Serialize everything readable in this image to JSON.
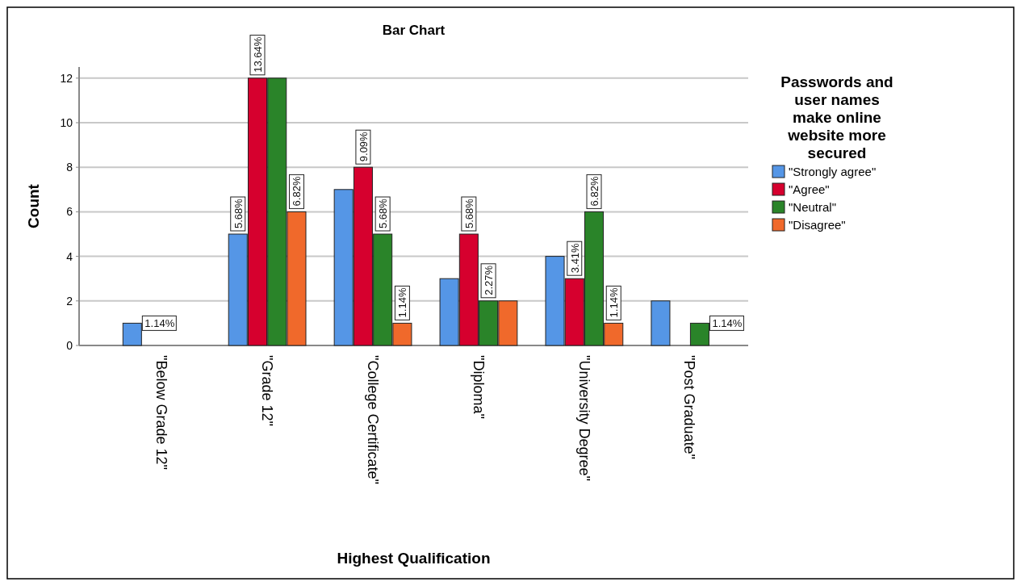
{
  "chart_data": {
    "type": "bar",
    "title": "Bar Chart",
    "xlabel": "Highest Qualification",
    "ylabel": "Count",
    "legend_title": "Passwords and user names make online website more secured",
    "categories": [
      "\"Below Grade 12\"",
      "\"Grade 12\"",
      "\"College Certificate\"",
      "\"Diploma\"",
      "\"University Degree\"",
      "\"Post Graduate\""
    ],
    "series": [
      {
        "name": "\"Strongly agree\"",
        "color": "#5596e6",
        "values": [
          1,
          5,
          7,
          3,
          4,
          2
        ]
      },
      {
        "name": "\"Agree\"",
        "color": "#d6002e",
        "values": [
          0,
          12,
          8,
          5,
          3,
          0
        ]
      },
      {
        "name": "\"Neutral\"",
        "color": "#2a8429",
        "values": [
          0,
          12,
          5,
          2,
          6,
          1
        ]
      },
      {
        "name": "\"Disagree\"",
        "color": "#f0692b",
        "values": [
          0,
          6,
          1,
          2,
          1,
          0
        ]
      }
    ],
    "annotations": [
      "1.14%",
      {
        "text": "5.68%",
        "x": "\"Grade 12\"",
        "y": 5
      },
      {
        "text": "13.64%",
        "x": "\"Grade 12\"",
        "y": 12
      },
      {
        "text": "6.82%",
        "x": "\"Grade 12\"",
        "y": 6
      },
      {
        "text": "9.09%",
        "x": "\"College Certificate\"",
        "y": 8
      },
      {
        "text": "5.68%",
        "x": "\"College Certificate\"",
        "y": 5
      },
      {
        "text": "1.14%",
        "x": "\"College Certificate\"",
        "y": 1
      },
      {
        "text": "5.68%",
        "x": "\"Diploma\"",
        "y": 5
      },
      {
        "text": "2.27%",
        "x": "\"Diploma\"",
        "y": 2
      },
      {
        "text": "3.41%",
        "x": "\"University Degree\"",
        "y": 3
      },
      {
        "text": "6.82%",
        "x": "\"University Degree\"",
        "y": 6
      },
      {
        "text": "1.14%",
        "x": "\"University Degree\"",
        "y": 1
      },
      {
        "text": "1.14%",
        "x": "\"Post Graduate\"",
        "y": 1
      }
    ],
    "ylim": [
      0,
      12.5
    ],
    "yticks": [
      0,
      2,
      4,
      6,
      8,
      10,
      12
    ],
    "grid": "y",
    "legend": "right"
  }
}
